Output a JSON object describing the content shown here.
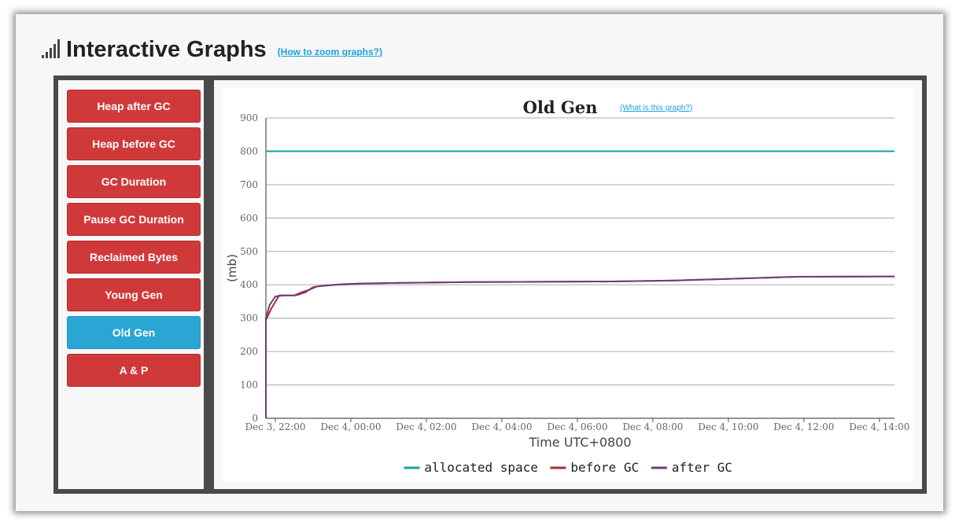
{
  "header": {
    "title": "Interactive Graphs",
    "zoom_link": "(How to zoom graphs?)"
  },
  "sidebar": {
    "items": [
      {
        "label": "Heap after GC"
      },
      {
        "label": "Heap before GC"
      },
      {
        "label": "GC Duration"
      },
      {
        "label": "Pause GC Duration"
      },
      {
        "label": "Reclaimed Bytes"
      },
      {
        "label": "Young Gen"
      },
      {
        "label": "Old Gen"
      },
      {
        "label": "A & P"
      }
    ],
    "active": "Old Gen"
  },
  "colors": {
    "sidebar_button": "#d0393a",
    "sidebar_active": "#2aa6d5",
    "link": "#1aa1e0"
  },
  "chart_data": {
    "type": "line",
    "title": "Old Gen",
    "help_link": "(What is this graph?)",
    "xlabel": "Time UTC+0800",
    "ylabel": "(mb)",
    "ylim": [
      0,
      900
    ],
    "yticks": [
      0,
      100,
      200,
      300,
      400,
      500,
      600,
      700,
      800,
      900
    ],
    "xlim_hours": [
      21.75,
      38.4
    ],
    "xticks": [
      {
        "label": "Dec 3, 22:00",
        "h": 22
      },
      {
        "label": "Dec 4, 00:00",
        "h": 24
      },
      {
        "label": "Dec 4, 02:00",
        "h": 26
      },
      {
        "label": "Dec 4, 04:00",
        "h": 28
      },
      {
        "label": "Dec 4, 06:00",
        "h": 30
      },
      {
        "label": "Dec 4, 08:00",
        "h": 32
      },
      {
        "label": "Dec 4, 10:00",
        "h": 34
      },
      {
        "label": "Dec 4, 12:00",
        "h": 36
      },
      {
        "label": "Dec 4, 14:00",
        "h": 38
      }
    ],
    "grid": true,
    "legend_position": "bottom",
    "series": [
      {
        "name": "allocated space",
        "color": "#1aa39a",
        "points": [
          [
            21.75,
            800
          ],
          [
            38.4,
            800
          ]
        ]
      },
      {
        "name": "before GC",
        "color": "#b02a37",
        "points": [
          [
            21.75,
            0
          ],
          [
            21.75,
            295
          ],
          [
            21.9,
            330
          ],
          [
            22.1,
            368
          ],
          [
            22.5,
            368
          ],
          [
            22.6,
            370
          ],
          [
            22.8,
            378
          ],
          [
            23.0,
            393
          ],
          [
            23.3,
            398
          ],
          [
            23.8,
            402
          ],
          [
            24.3,
            404
          ],
          [
            25.4,
            406
          ],
          [
            27.1,
            408
          ],
          [
            30.9,
            410
          ],
          [
            32.6,
            413
          ],
          [
            33.8,
            417
          ],
          [
            35.8,
            424
          ],
          [
            38.4,
            425
          ]
        ]
      },
      {
        "name": "after GC",
        "color": "#6b3f7a",
        "points": [
          [
            21.75,
            0
          ],
          [
            21.75,
            300
          ],
          [
            21.85,
            340
          ],
          [
            22.0,
            365
          ],
          [
            22.2,
            368
          ],
          [
            22.5,
            368
          ],
          [
            22.7,
            378
          ],
          [
            22.9,
            385
          ],
          [
            23.1,
            395
          ],
          [
            23.6,
            400
          ],
          [
            24.2,
            403
          ],
          [
            25.4,
            406
          ],
          [
            27.1,
            408
          ],
          [
            30.9,
            410
          ],
          [
            32.6,
            413
          ],
          [
            33.8,
            417
          ],
          [
            35.8,
            424
          ],
          [
            38.4,
            425
          ]
        ]
      }
    ]
  }
}
